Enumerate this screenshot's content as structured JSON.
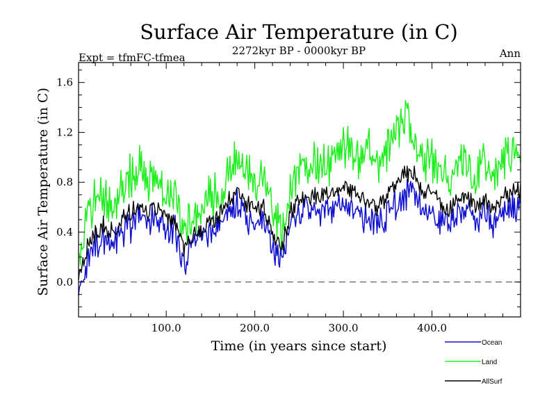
{
  "chart_data": {
    "type": "line",
    "title": "Surface Air Temperature (in C)",
    "subtitle": "2272kyr BP - 0000kyr BP",
    "top_left_label": "Expt = tfmFC-tfmea",
    "top_right_label": "Ann",
    "xlabel": "Time (in years since start)",
    "ylabel": "Surface Air Temperature (in C)",
    "xlim": [
      1,
      500
    ],
    "ylim": [
      -0.28,
      1.76
    ],
    "x_ticks": [
      100,
      200,
      300,
      400
    ],
    "x_tick_labels": [
      "100.0",
      "200.0",
      "300.0",
      "400.0"
    ],
    "y_ticks": [
      0.0,
      0.4,
      0.8,
      1.2,
      1.6
    ],
    "y_tick_labels": [
      "0.0",
      "0.4",
      "0.8",
      "1.2",
      "1.6"
    ],
    "reference_line": {
      "y": 0.0,
      "style": "dashed"
    },
    "legend_position": "bottom-right",
    "x": [
      1,
      10,
      20,
      30,
      40,
      50,
      60,
      70,
      80,
      90,
      100,
      110,
      120,
      130,
      140,
      150,
      160,
      170,
      180,
      190,
      200,
      210,
      220,
      230,
      240,
      250,
      260,
      270,
      280,
      290,
      300,
      310,
      320,
      330,
      340,
      350,
      360,
      370,
      380,
      390,
      400,
      410,
      420,
      430,
      440,
      450,
      460,
      470,
      480,
      490,
      500
    ],
    "series": [
      {
        "name": "Ocean",
        "color": "#1010d0",
        "values": [
          -0.05,
          0.15,
          0.3,
          0.35,
          0.32,
          0.4,
          0.45,
          0.5,
          0.48,
          0.5,
          0.45,
          0.42,
          0.15,
          0.3,
          0.35,
          0.4,
          0.45,
          0.55,
          0.6,
          0.5,
          0.45,
          0.5,
          0.3,
          0.2,
          0.45,
          0.55,
          0.6,
          0.55,
          0.6,
          0.55,
          0.65,
          0.6,
          0.55,
          0.5,
          0.45,
          0.55,
          0.6,
          0.7,
          0.75,
          0.55,
          0.6,
          0.5,
          0.45,
          0.5,
          0.55,
          0.5,
          0.55,
          0.45,
          0.55,
          0.6,
          0.62
        ]
      },
      {
        "name": "Land",
        "color": "#22ee22",
        "values": [
          0.25,
          0.5,
          0.65,
          0.7,
          0.6,
          0.75,
          0.85,
          0.9,
          0.8,
          0.85,
          0.7,
          0.75,
          0.4,
          0.55,
          0.6,
          0.7,
          0.65,
          0.85,
          1.0,
          0.9,
          0.8,
          0.85,
          0.6,
          0.35,
          0.75,
          0.9,
          0.95,
          1.0,
          0.9,
          1.0,
          1.1,
          1.05,
          1.0,
          1.1,
          0.95,
          1.05,
          1.2,
          1.35,
          1.15,
          0.95,
          1.0,
          0.9,
          0.85,
          0.95,
          0.9,
          0.85,
          0.95,
          0.85,
          0.95,
          1.0,
          1.05
        ]
      },
      {
        "name": "AllSurf",
        "color": "#000000",
        "values": [
          0.05,
          0.25,
          0.4,
          0.45,
          0.42,
          0.5,
          0.55,
          0.6,
          0.56,
          0.6,
          0.52,
          0.5,
          0.25,
          0.38,
          0.43,
          0.5,
          0.52,
          0.65,
          0.72,
          0.62,
          0.58,
          0.62,
          0.4,
          0.25,
          0.55,
          0.65,
          0.7,
          0.68,
          0.72,
          0.68,
          0.78,
          0.73,
          0.68,
          0.65,
          0.6,
          0.7,
          0.78,
          0.88,
          0.85,
          0.68,
          0.72,
          0.62,
          0.58,
          0.65,
          0.68,
          0.62,
          0.68,
          0.6,
          0.68,
          0.72,
          0.75
        ]
      }
    ]
  }
}
